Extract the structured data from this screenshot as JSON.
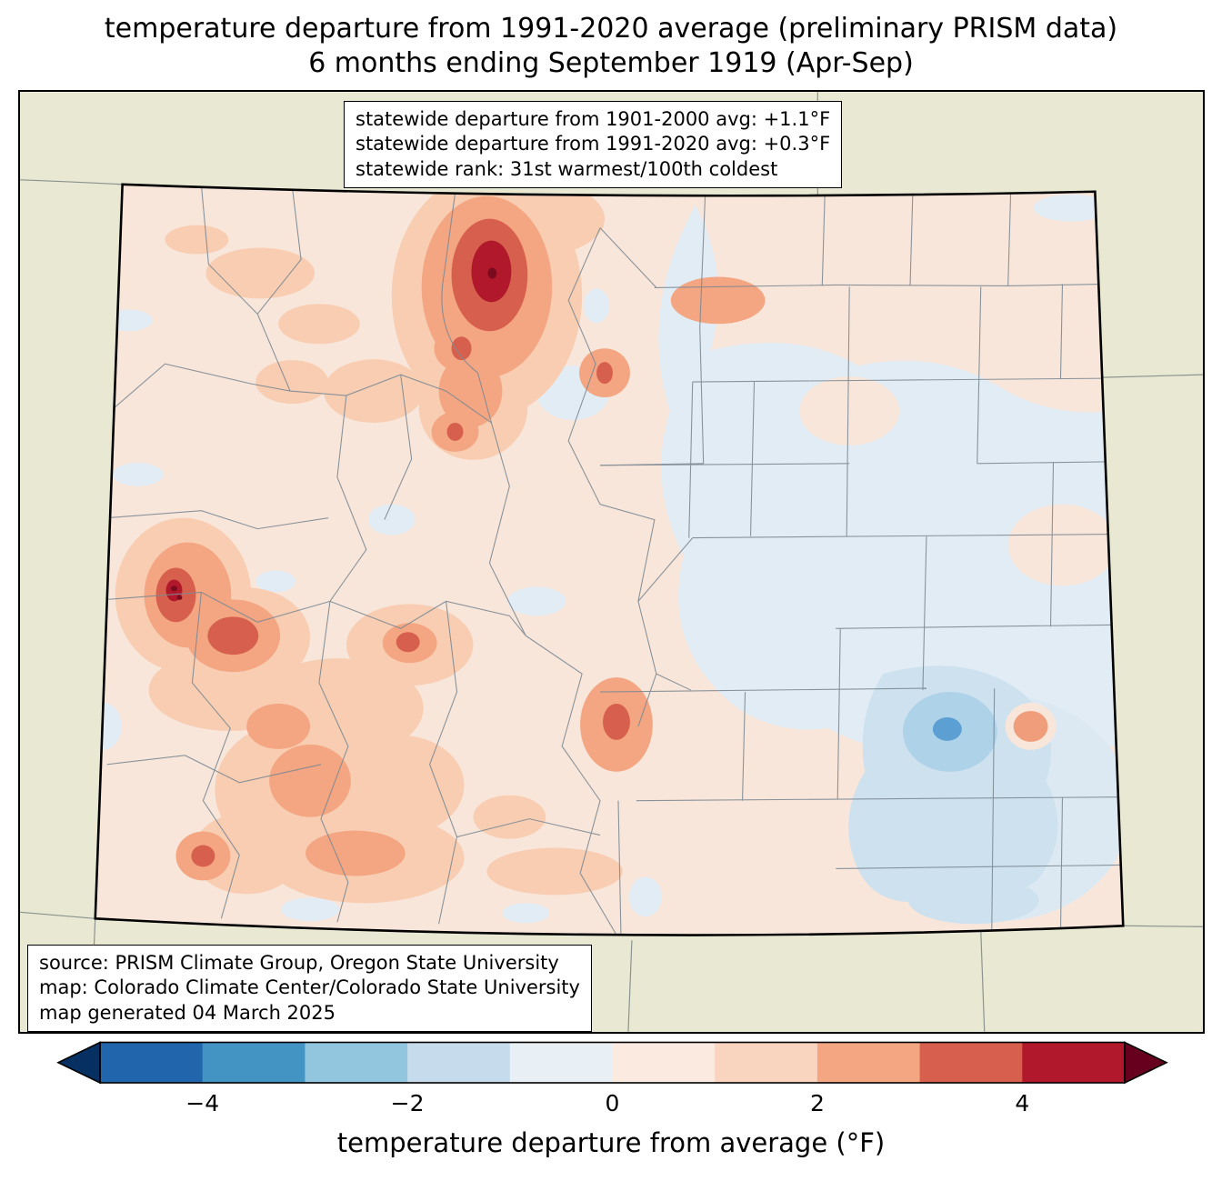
{
  "title": {
    "line1": "temperature departure from 1991-2020 average (preliminary PRISM data)",
    "line2": "6 months ending September 1919 (Apr-Sep)"
  },
  "stats_box": {
    "lines": [
      "statewide departure from 1901-2000 avg: +1.1°F",
      "statewide departure from 1991-2020 avg: +0.3°F",
      "statewide rank: 31st warmest/100th coldest"
    ]
  },
  "source_box": {
    "lines": [
      "source: PRISM Climate Group, Oregon State University",
      "map: Colorado Climate Center/Colorado State University",
      "map generated 04 March 2025"
    ]
  },
  "colorbar": {
    "label": "temperature departure from average (°F)",
    "range": [
      -5,
      5
    ],
    "ticks": [
      {
        "label": "−4",
        "value": -4
      },
      {
        "label": "−2",
        "value": -2
      },
      {
        "label": "0",
        "value": 0
      },
      {
        "label": "2",
        "value": 2
      },
      {
        "label": "4",
        "value": 4
      }
    ],
    "segment_colors": [
      "#2166ac",
      "#4393c3",
      "#92c5de",
      "#c6dcec",
      "#e9f0f5",
      "#faeae0",
      "#f9d4bf",
      "#f4a582",
      "#d6604d",
      "#b2182b"
    ],
    "arrow_left_color": "#053061",
    "arrow_right_color": "#67001f"
  },
  "chart_data": {
    "type": "heatmap",
    "title": "temperature departure from 1991-2020 average (preliminary PRISM data) — 6 months ending September 1919 (Apr-Sep)",
    "region": "Colorado",
    "colorbar_label": "temperature departure from average (°F)",
    "colorbar_ticks": [
      -4,
      -2,
      0,
      2,
      4
    ],
    "colorbar_range": [
      -5,
      5
    ],
    "statewide_departure_from_1901_2000_avg_F": 1.1,
    "statewide_departure_from_1991_2020_avg_F": 0.3,
    "statewide_rank": "31st warmest/100th coldest",
    "legend_position": "bottom",
    "notes": "warm anomalies (up to ~+4°F) over north-central and west-central mountains; cool anomalies (to ~-2°F) over eastern plains and southeast"
  }
}
